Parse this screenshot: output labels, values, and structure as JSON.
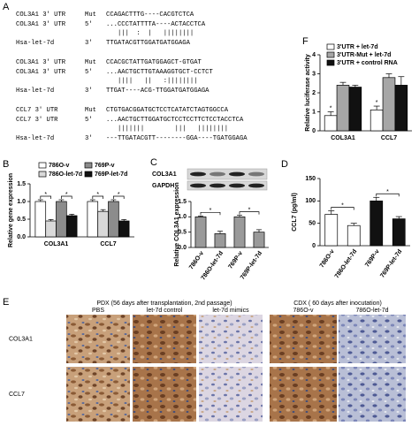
{
  "panel_a": {
    "label": "A",
    "blocks": [
      {
        "mut_gene": "COL3A1 3' UTR",
        "mut_end": "Mut",
        "mut_seq": "CCAGACTTTG----CACGTCTCA",
        "utr_gene": "COL3A1 3' UTR",
        "utr_end": "5'",
        "utr_seq": "...CCCTATTTTA----ACTACCTCA",
        "pairing": "   |||  :  |   ||||||||",
        "mirna": "Hsa-let-7d",
        "mirna_end": "3'",
        "mirna_seq": "TTGATACGTTGGATGATGGAGA"
      },
      {
        "mut_gene": "COL3A1 3' UTR",
        "mut_end": "Mut",
        "mut_seq": "CCACGCTATTGATGGAGCT-GTGAT",
        "utr_gene": "COL3A1 3' UTR",
        "utr_end": "5'",
        "utr_seq": "...AACTGCTTGTAAAGGTGCT-CCTCT",
        "pairing": "   ||||   ||   :||||||||",
        "mirna": "Hsa-let-7d",
        "mirna_end": "3'",
        "mirna_seq": "TTGAT----ACG-TTGGATGATGGAGA"
      },
      {
        "mut_gene": "CCL7 3' UTR",
        "mut_end": "Mut",
        "mut_seq": "CTGTGACGGATGCTCCTCATATCTAGTGGCCA",
        "utr_gene": "CCL7 3' UTR",
        "utr_end": "5'",
        "utr_seq": "...AACTGCTTGGATGCTCCTCCTTCTCCTACCTCA",
        "pairing": "   |||||||        |||   ||||||||",
        "mirna": "Hsa-let-7d",
        "mirna_end": "3'",
        "mirna_seq": "---TTGATACGTT--------GGA----TGATGGAGA"
      }
    ]
  },
  "chart_data": [
    {
      "type": "bar",
      "label": "F",
      "ylabel": "Relative luciferase activity",
      "categories": [
        "COL3A1",
        "CCL7"
      ],
      "series": [
        {
          "name": "3'UTR + let-7d",
          "color": "#ffffff",
          "values": [
            0.8,
            1.1
          ],
          "errors": [
            0.2,
            0.2
          ]
        },
        {
          "name": "3'UTR-Mut + let-7d",
          "color": "#a6a6a6",
          "values": [
            2.4,
            2.8
          ],
          "errors": [
            0.15,
            0.2
          ]
        },
        {
          "name": "3'UTR + control RNA",
          "color": "#111111",
          "values": [
            2.3,
            2.4
          ],
          "errors": [
            0.1,
            0.45
          ]
        }
      ],
      "ylim": [
        0,
        4
      ],
      "yticks": [
        0,
        1,
        2,
        3,
        4
      ],
      "annotations": [
        "*",
        "*"
      ]
    },
    {
      "type": "bar",
      "label": "B",
      "ylabel": "Relative gene expression",
      "categories": [
        "COL3A1",
        "CCL7"
      ],
      "series": [
        {
          "name": "786O-v",
          "color": "#ffffff",
          "values": [
            1.0,
            1.0
          ],
          "errors": [
            0.05,
            0.05
          ]
        },
        {
          "name": "786O-let-7d",
          "color": "#d9d9d9",
          "values": [
            0.45,
            0.72
          ],
          "errors": [
            0.04,
            0.05
          ]
        },
        {
          "name": "769P-v",
          "color": "#8c8c8c",
          "values": [
            1.0,
            1.0
          ],
          "errors": [
            0.05,
            0.05
          ]
        },
        {
          "name": "769P-let-7d",
          "color": "#111111",
          "values": [
            0.6,
            0.45
          ],
          "errors": [
            0.04,
            0.04
          ]
        }
      ],
      "ylim": [
        0,
        1.5
      ],
      "yticks": [
        {
          "value": 0,
          "label": "0.0"
        },
        0.5,
        {
          "value": 1,
          "label": "1.0"
        },
        1.5
      ],
      "annotations": [
        "*",
        "*",
        "*",
        "*"
      ]
    },
    {
      "type": "bar",
      "label": "C",
      "ylabel": "Relative COL3A1 expression",
      "blot_rows": [
        "COL3A1",
        "GAPDH"
      ],
      "categories": [
        "786O-v",
        "786O-let-7d",
        "769P-v",
        "769P-let-7d"
      ],
      "values": [
        1.0,
        0.45,
        1.0,
        0.5
      ],
      "errors": [
        0.03,
        0.08,
        0.05,
        0.08
      ],
      "color": "#9a9a9a",
      "ylim": [
        0,
        1.5
      ],
      "yticks": [
        {
          "value": 0,
          "label": "0.0"
        },
        0.5,
        {
          "value": 1,
          "label": "1.0"
        },
        1.5
      ],
      "annotations": [
        "*",
        "*"
      ]
    },
    {
      "type": "bar",
      "label": "D",
      "ylabel": "CCL7 (pg/ml)",
      "categories": [
        "786O-v",
        "786O-let-7d",
        "769P-v",
        "769P-let-7d"
      ],
      "values": [
        70,
        45,
        100,
        60
      ],
      "errors": [
        8,
        5,
        8,
        5
      ],
      "colors": [
        "#ffffff",
        "#ffffff",
        "#111111",
        "#111111"
      ],
      "ylim": [
        0,
        150
      ],
      "yticks": [
        0,
        50,
        100,
        150
      ],
      "annotations": [
        "*",
        "*"
      ]
    }
  ],
  "panel_e": {
    "label": "E",
    "rows": [
      "COL3A1",
      "CCL7"
    ],
    "groups": [
      {
        "title": "PDX (56 days after transplantation, 2nd passage)",
        "columns": [
          "PBS",
          "let-7d control",
          "let-7d mimics"
        ]
      },
      {
        "title": "CDX ( 60 days after inocutation)",
        "columns": [
          "786O-v",
          "786O-let-7d"
        ]
      }
    ]
  }
}
